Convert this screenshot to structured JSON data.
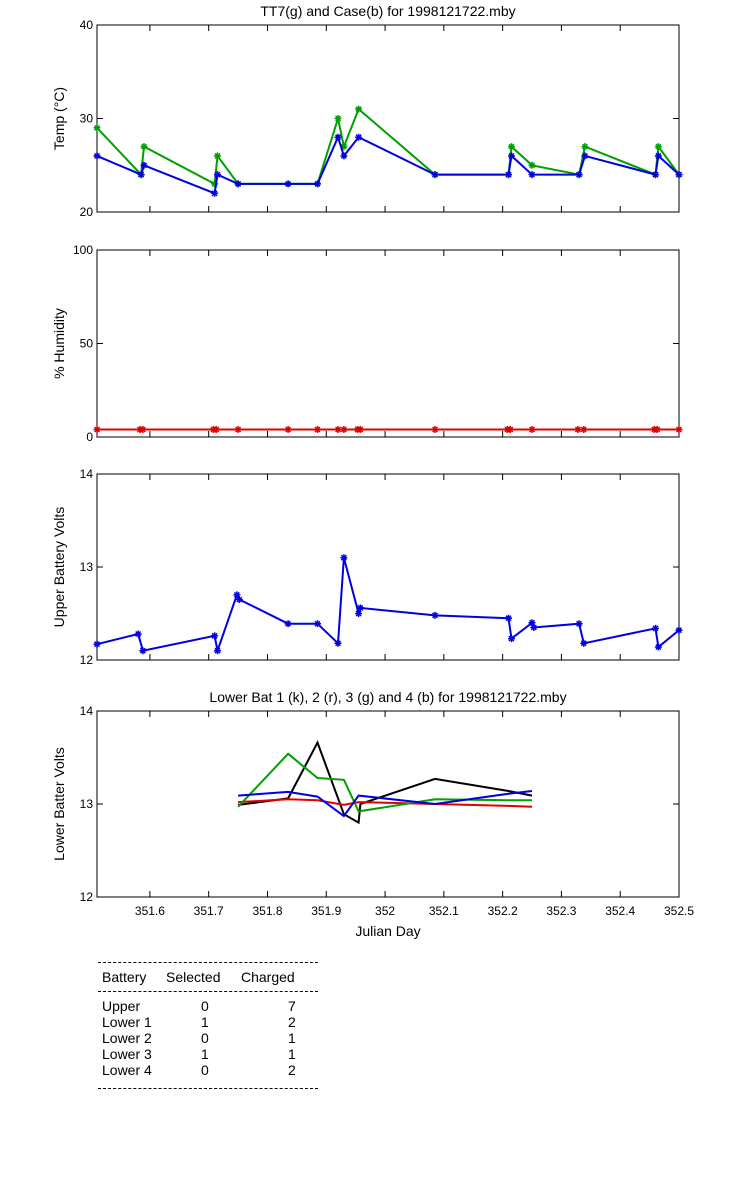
{
  "chart_data": [
    {
      "type": "line",
      "title": "TT7(g) and Case(b) for 1998121722.mby",
      "xlabel": "",
      "ylabel": "Temp  (°C)",
      "xlim": [
        351.51,
        352.5
      ],
      "ylim": [
        20,
        40
      ],
      "yticks": [
        20,
        30,
        40
      ],
      "grid": false,
      "series": [
        {
          "color": "#00a000",
          "marker": "star",
          "x": [
            351.51,
            351.585,
            351.59,
            351.71,
            351.715,
            351.75,
            351.835,
            351.885,
            351.92,
            351.93,
            351.955,
            352.085,
            352.21,
            352.215,
            352.25,
            352.33,
            352.34,
            352.46,
            352.465,
            352.5
          ],
          "y": [
            29,
            24,
            27,
            23,
            26,
            23,
            23,
            23,
            30,
            27,
            31,
            24,
            24,
            27,
            25,
            24,
            27,
            24,
            27,
            24
          ]
        },
        {
          "color": "#0000e0",
          "marker": "star",
          "x": [
            351.51,
            351.585,
            351.59,
            351.71,
            351.715,
            351.75,
            351.835,
            351.885,
            351.92,
            351.93,
            351.955,
            352.085,
            352.21,
            352.215,
            352.25,
            352.33,
            352.34,
            352.46,
            352.465,
            352.5
          ],
          "y": [
            26,
            24,
            25,
            22,
            24,
            23,
            23,
            23,
            28,
            26,
            28,
            24,
            24,
            26,
            24,
            24,
            26,
            24,
            26,
            24
          ]
        }
      ]
    },
    {
      "type": "line",
      "title": "",
      "xlabel": "",
      "ylabel": "% Humidity",
      "xlim": [
        351.51,
        352.5
      ],
      "ylim": [
        0,
        100
      ],
      "yticks": [
        0,
        50,
        100
      ],
      "grid": false,
      "series": [
        {
          "color": "#e00000",
          "marker": "star",
          "x": [
            351.51,
            351.583,
            351.588,
            351.708,
            351.713,
            351.75,
            351.835,
            351.885,
            351.92,
            351.93,
            351.953,
            351.958,
            352.085,
            352.208,
            352.213,
            352.25,
            352.328,
            352.338,
            352.458,
            352.463,
            352.5
          ],
          "y": [
            4,
            4,
            4,
            4,
            4,
            4,
            4,
            4,
            4,
            4,
            4,
            4,
            4,
            4,
            4,
            4,
            4,
            4,
            4,
            4,
            4
          ]
        }
      ]
    },
    {
      "type": "line",
      "title": "",
      "xlabel": "",
      "ylabel": "Upper Battery Volts",
      "xlim": [
        351.51,
        352.5
      ],
      "ylim": [
        12,
        14
      ],
      "yticks": [
        12,
        13,
        14
      ],
      "grid": false,
      "series": [
        {
          "color": "#0000e0",
          "marker": "star",
          "x": [
            351.51,
            351.58,
            351.588,
            351.71,
            351.715,
            351.748,
            351.752,
            351.835,
            351.885,
            351.92,
            351.93,
            351.955,
            351.958,
            352.085,
            352.21,
            352.215,
            352.25,
            352.253,
            352.33,
            352.338,
            352.46,
            352.465,
            352.5
          ],
          "y": [
            12.17,
            12.28,
            12.1,
            12.26,
            12.1,
            12.7,
            12.65,
            12.39,
            12.39,
            12.18,
            13.1,
            12.5,
            12.56,
            12.48,
            12.45,
            12.23,
            12.4,
            12.35,
            12.39,
            12.18,
            12.34,
            12.14,
            12.32
          ]
        }
      ]
    },
    {
      "type": "line",
      "title": "Lower Bat 1 (k), 2 (r), 3 (g) and 4 (b) for 1998121722.mby",
      "xlabel": "Julian Day",
      "ylabel": "Lower Batter Volts",
      "xlim": [
        351.51,
        352.5
      ],
      "ylim": [
        12,
        14
      ],
      "yticks": [
        12,
        13,
        14
      ],
      "xticks": [
        351.6,
        351.7,
        351.8,
        351.9,
        352,
        352.1,
        352.2,
        352.3,
        352.4,
        352.5
      ],
      "xticklabels": [
        "351.6",
        "351.7",
        "351.8",
        "351.9",
        "352",
        "352.1",
        "352.2",
        "352.3",
        "352.4",
        "352.5"
      ],
      "grid": false,
      "series": [
        {
          "color": "#000000",
          "marker": "none",
          "x": [
            351.75,
            351.835,
            351.885,
            351.93,
            351.955,
            351.958,
            352.085,
            352.21,
            352.25
          ],
          "y": [
            12.99,
            13.06,
            13.66,
            12.89,
            12.8,
            13.0,
            13.27,
            13.14,
            13.09
          ]
        },
        {
          "color": "#e00000",
          "marker": "none",
          "x": [
            351.75,
            351.835,
            351.885,
            351.93,
            351.955,
            352.085,
            352.21,
            352.25
          ],
          "y": [
            13.02,
            13.05,
            13.04,
            12.99,
            13.02,
            13.0,
            12.98,
            12.97
          ]
        },
        {
          "color": "#00a000",
          "marker": "none",
          "x": [
            351.75,
            351.835,
            351.885,
            351.93,
            351.955,
            352.085,
            352.21,
            352.25
          ],
          "y": [
            12.97,
            13.54,
            13.28,
            13.26,
            12.92,
            13.05,
            13.04,
            13.04
          ]
        },
        {
          "color": "#0000e0",
          "marker": "none",
          "x": [
            351.75,
            351.835,
            351.885,
            351.93,
            351.955,
            352.085,
            352.21,
            352.25
          ],
          "y": [
            13.09,
            13.13,
            13.08,
            12.87,
            13.09,
            13.0,
            13.11,
            13.14
          ]
        }
      ]
    }
  ],
  "table": {
    "headers": [
      "Battery",
      "Selected",
      "Charged"
    ],
    "rows": [
      [
        "Upper",
        "0",
        "7"
      ],
      [
        "Lower 1",
        "1",
        "2"
      ],
      [
        "Lower 2",
        "0",
        "1"
      ],
      [
        "Lower 3",
        "1",
        "1"
      ],
      [
        "Lower 4",
        "0",
        "2"
      ]
    ]
  }
}
